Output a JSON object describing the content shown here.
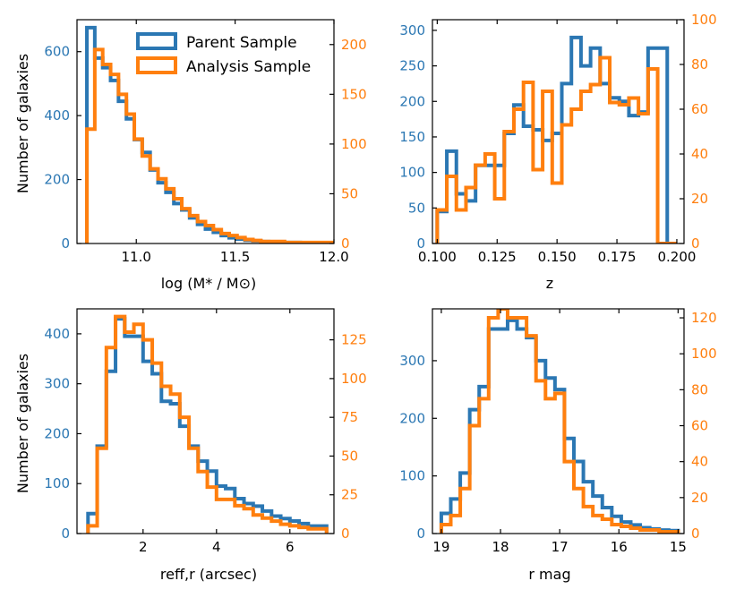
{
  "colors": {
    "parent": "#2b77b3",
    "analysis": "#ff7f0e",
    "axes": "#000000",
    "background": "#ffffff"
  },
  "legend": {
    "parent_label": "Parent Sample",
    "analysis_label": "Analysis Sample",
    "placement": "top-right of first panel"
  },
  "chart_data": [
    {
      "type": "histogram",
      "panel": "top-left",
      "xlabel": "log (M* / M⊙)",
      "ylabel": "Number of galaxies",
      "xlim": [
        10.7,
        12.0
      ],
      "ylim_left": [
        0,
        700
      ],
      "ylim_right": [
        0,
        225
      ],
      "xticks": [
        "11.0",
        "11.5",
        "12.0"
      ],
      "xtick_values": [
        11.0,
        11.5,
        12.0
      ],
      "yticks_left": [
        "0",
        "200",
        "400",
        "600"
      ],
      "ytick_values_left": [
        0,
        200,
        400,
        600
      ],
      "yticks_right": [
        "0",
        "50",
        "100",
        "150",
        "200"
      ],
      "ytick_values_right": [
        0,
        50,
        100,
        150,
        200
      ],
      "series": [
        {
          "name": "Parent Sample",
          "axis": "left",
          "edges": [
            10.75,
            10.79,
            10.83,
            10.87,
            10.91,
            10.95,
            10.99,
            11.03,
            11.07,
            11.11,
            11.15,
            11.19,
            11.23,
            11.27,
            11.31,
            11.35,
            11.39,
            11.43,
            11.47,
            11.51,
            11.55,
            11.59,
            11.63,
            11.67,
            11.71,
            11.75,
            11.79,
            11.83,
            11.87,
            11.91,
            11.95,
            11.99
          ],
          "values": [
            675,
            580,
            550,
            510,
            445,
            390,
            325,
            285,
            230,
            190,
            160,
            125,
            105,
            80,
            60,
            45,
            35,
            25,
            18,
            14,
            10,
            8,
            6,
            5,
            4,
            3,
            3,
            2,
            2,
            2,
            2
          ]
        },
        {
          "name": "Analysis Sample",
          "axis": "right",
          "edges": [
            10.75,
            10.79,
            10.83,
            10.87,
            10.91,
            10.95,
            10.99,
            11.03,
            11.07,
            11.11,
            11.15,
            11.19,
            11.23,
            11.27,
            11.31,
            11.35,
            11.39,
            11.43,
            11.47,
            11.51,
            11.55,
            11.59,
            11.63,
            11.67,
            11.71,
            11.75,
            11.79,
            11.83,
            11.87,
            11.91,
            11.95,
            11.99
          ],
          "values": [
            115,
            195,
            180,
            170,
            150,
            130,
            105,
            88,
            75,
            65,
            55,
            45,
            35,
            28,
            22,
            18,
            14,
            10,
            8,
            6,
            4,
            3,
            2,
            2,
            2,
            1,
            1,
            1,
            1,
            1,
            1
          ]
        }
      ]
    },
    {
      "type": "histogram",
      "panel": "top-right",
      "xlabel": "z",
      "ylabel": "",
      "xlim": [
        0.098,
        0.203
      ],
      "ylim_left": [
        0,
        315
      ],
      "ylim_right": [
        0,
        100
      ],
      "xticks": [
        "0.100",
        "0.125",
        "0.150",
        "0.175",
        "0.200"
      ],
      "xtick_values": [
        0.1,
        0.125,
        0.15,
        0.175,
        0.2
      ],
      "yticks_left": [
        "0",
        "50",
        "100",
        "150",
        "200",
        "250",
        "300"
      ],
      "ytick_values_left": [
        0,
        50,
        100,
        150,
        200,
        250,
        300
      ],
      "yticks_right": [
        "0",
        "20",
        "40",
        "60",
        "80",
        "100"
      ],
      "ytick_values_right": [
        0,
        20,
        40,
        60,
        80,
        100
      ],
      "series": [
        {
          "name": "Parent Sample",
          "axis": "left",
          "edges": [
            0.1,
            0.104,
            0.108,
            0.112,
            0.116,
            0.12,
            0.124,
            0.128,
            0.132,
            0.136,
            0.14,
            0.144,
            0.148,
            0.152,
            0.156,
            0.16,
            0.164,
            0.168,
            0.172,
            0.176,
            0.18,
            0.184,
            0.188,
            0.192,
            0.196,
            0.2
          ],
          "values": [
            45,
            130,
            70,
            60,
            110,
            110,
            110,
            155,
            195,
            165,
            160,
            145,
            155,
            225,
            290,
            250,
            275,
            225,
            205,
            200,
            180,
            185,
            275,
            275,
            0
          ]
        },
        {
          "name": "Analysis Sample",
          "axis": "right",
          "edges": [
            0.1,
            0.104,
            0.108,
            0.112,
            0.116,
            0.12,
            0.124,
            0.128,
            0.132,
            0.136,
            0.14,
            0.144,
            0.148,
            0.152,
            0.156,
            0.16,
            0.164,
            0.168,
            0.172,
            0.176,
            0.18,
            0.184,
            0.188,
            0.192,
            0.196,
            0.2
          ],
          "values": [
            15,
            30,
            15,
            25,
            35,
            40,
            20,
            50,
            60,
            72,
            33,
            68,
            27,
            53,
            60,
            68,
            71,
            83,
            63,
            62,
            65,
            58,
            78,
            0,
            0
          ]
        }
      ]
    },
    {
      "type": "histogram",
      "panel": "bottom-left",
      "xlabel": "reff,r (arcsec)",
      "ylabel": "Number of galaxies",
      "xlim": [
        0.2,
        7.2
      ],
      "ylim_left": [
        0,
        450
      ],
      "ylim_right": [
        0,
        145
      ],
      "xticks": [
        "2",
        "4",
        "6"
      ],
      "xtick_values": [
        2,
        4,
        6
      ],
      "yticks_left": [
        "0",
        "100",
        "200",
        "300",
        "400"
      ],
      "ytick_values_left": [
        0,
        100,
        200,
        300,
        400
      ],
      "yticks_right": [
        "0",
        "25",
        "50",
        "75",
        "100",
        "125"
      ],
      "ytick_values_right": [
        0,
        25,
        50,
        75,
        100,
        125
      ],
      "series": [
        {
          "name": "Parent Sample",
          "axis": "left",
          "edges": [
            0.5,
            0.75,
            1.0,
            1.25,
            1.5,
            1.75,
            2.0,
            2.25,
            2.5,
            2.75,
            3.0,
            3.25,
            3.5,
            3.75,
            4.0,
            4.25,
            4.5,
            4.75,
            5.0,
            5.25,
            5.5,
            5.75,
            6.0,
            6.25,
            6.5,
            6.75,
            7.0
          ],
          "values": [
            40,
            175,
            325,
            430,
            395,
            395,
            345,
            320,
            265,
            260,
            215,
            175,
            145,
            125,
            95,
            90,
            70,
            60,
            55,
            45,
            35,
            30,
            25,
            20,
            15,
            15
          ]
        },
        {
          "name": "Analysis Sample",
          "axis": "right",
          "edges": [
            0.5,
            0.75,
            1.0,
            1.25,
            1.5,
            1.75,
            2.0,
            2.25,
            2.5,
            2.75,
            3.0,
            3.25,
            3.5,
            3.75,
            4.0,
            4.25,
            4.5,
            4.75,
            5.0,
            5.25,
            5.5,
            5.75,
            6.0,
            6.25,
            6.5,
            6.75,
            7.0
          ],
          "values": [
            5,
            55,
            120,
            140,
            130,
            135,
            125,
            110,
            95,
            90,
            75,
            55,
            40,
            30,
            22,
            22,
            18,
            16,
            12,
            10,
            8,
            6,
            5,
            4,
            3,
            3
          ]
        }
      ]
    },
    {
      "type": "histogram",
      "panel": "bottom-right",
      "xlabel": "r mag",
      "ylabel": "",
      "xlim": [
        19.15,
        14.9
      ],
      "ylim_left": [
        0,
        390
      ],
      "ylim_right": [
        0,
        125
      ],
      "xticks": [
        "19",
        "18",
        "17",
        "16",
        "15"
      ],
      "xtick_values": [
        19,
        18,
        17,
        16,
        15
      ],
      "yticks_left": [
        "0",
        "100",
        "200",
        "300"
      ],
      "ytick_values_left": [
        0,
        100,
        200,
        300
      ],
      "yticks_right": [
        "0",
        "20",
        "40",
        "60",
        "80",
        "100",
        "120"
      ],
      "ytick_values_right": [
        0,
        20,
        40,
        60,
        80,
        100,
        120
      ],
      "series": [
        {
          "name": "Parent Sample",
          "axis": "left",
          "edges": [
            19.0,
            18.84,
            18.68,
            18.52,
            18.36,
            18.2,
            18.04,
            17.88,
            17.72,
            17.56,
            17.4,
            17.24,
            17.08,
            16.92,
            16.76,
            16.6,
            16.44,
            16.28,
            16.12,
            15.96,
            15.8,
            15.64,
            15.48,
            15.32,
            15.16,
            15.0
          ],
          "values": [
            35,
            60,
            105,
            215,
            255,
            355,
            355,
            370,
            355,
            340,
            300,
            270,
            250,
            165,
            125,
            90,
            65,
            45,
            30,
            20,
            15,
            10,
            8,
            6,
            5
          ]
        },
        {
          "name": "Analysis Sample",
          "axis": "right",
          "edges": [
            19.0,
            18.84,
            18.68,
            18.52,
            18.36,
            18.2,
            18.04,
            17.88,
            17.72,
            17.56,
            17.4,
            17.24,
            17.08,
            16.92,
            16.76,
            16.6,
            16.44,
            16.28,
            16.12,
            15.96,
            15.8,
            15.64,
            15.48,
            15.32,
            15.16,
            15.0
          ],
          "values": [
            5,
            10,
            25,
            60,
            75,
            120,
            125,
            120,
            120,
            110,
            85,
            75,
            78,
            40,
            25,
            15,
            10,
            8,
            5,
            4,
            3,
            2,
            2,
            1,
            1
          ]
        }
      ]
    }
  ]
}
